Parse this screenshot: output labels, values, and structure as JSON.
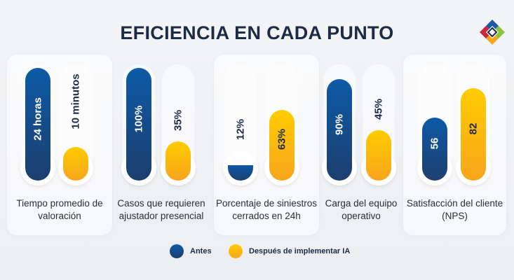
{
  "title": "EFICIENCIA EN CADA PUNTO",
  "legend": {
    "before": "Antes",
    "after": "Después de implementar IA"
  },
  "colors": {
    "before": "#1a4f8e",
    "after": "#fbb811",
    "title": "#1d2b45"
  },
  "chart_data": {
    "type": "bar",
    "categories": [
      "Tiempo promedio de valoración",
      "Casos que requieren ajustador presencial",
      "Porcentaje de siniestros cerrados en 24h",
      "Carga del equipo operativo",
      "Satisfacción del cliente (NPS)"
    ],
    "series": [
      {
        "name": "Antes",
        "labels": [
          "24 horas",
          "100%",
          "12%",
          "90%",
          "56"
        ],
        "fill_level": [
          1.0,
          1.0,
          0.12,
          0.9,
          0.56
        ]
      },
      {
        "name": "Después de implementar IA",
        "labels": [
          "10 minutos",
          "35%",
          "63%",
          "45%",
          "82"
        ],
        "fill_level": [
          0.3,
          0.35,
          0.63,
          0.45,
          0.82
        ]
      }
    ]
  }
}
